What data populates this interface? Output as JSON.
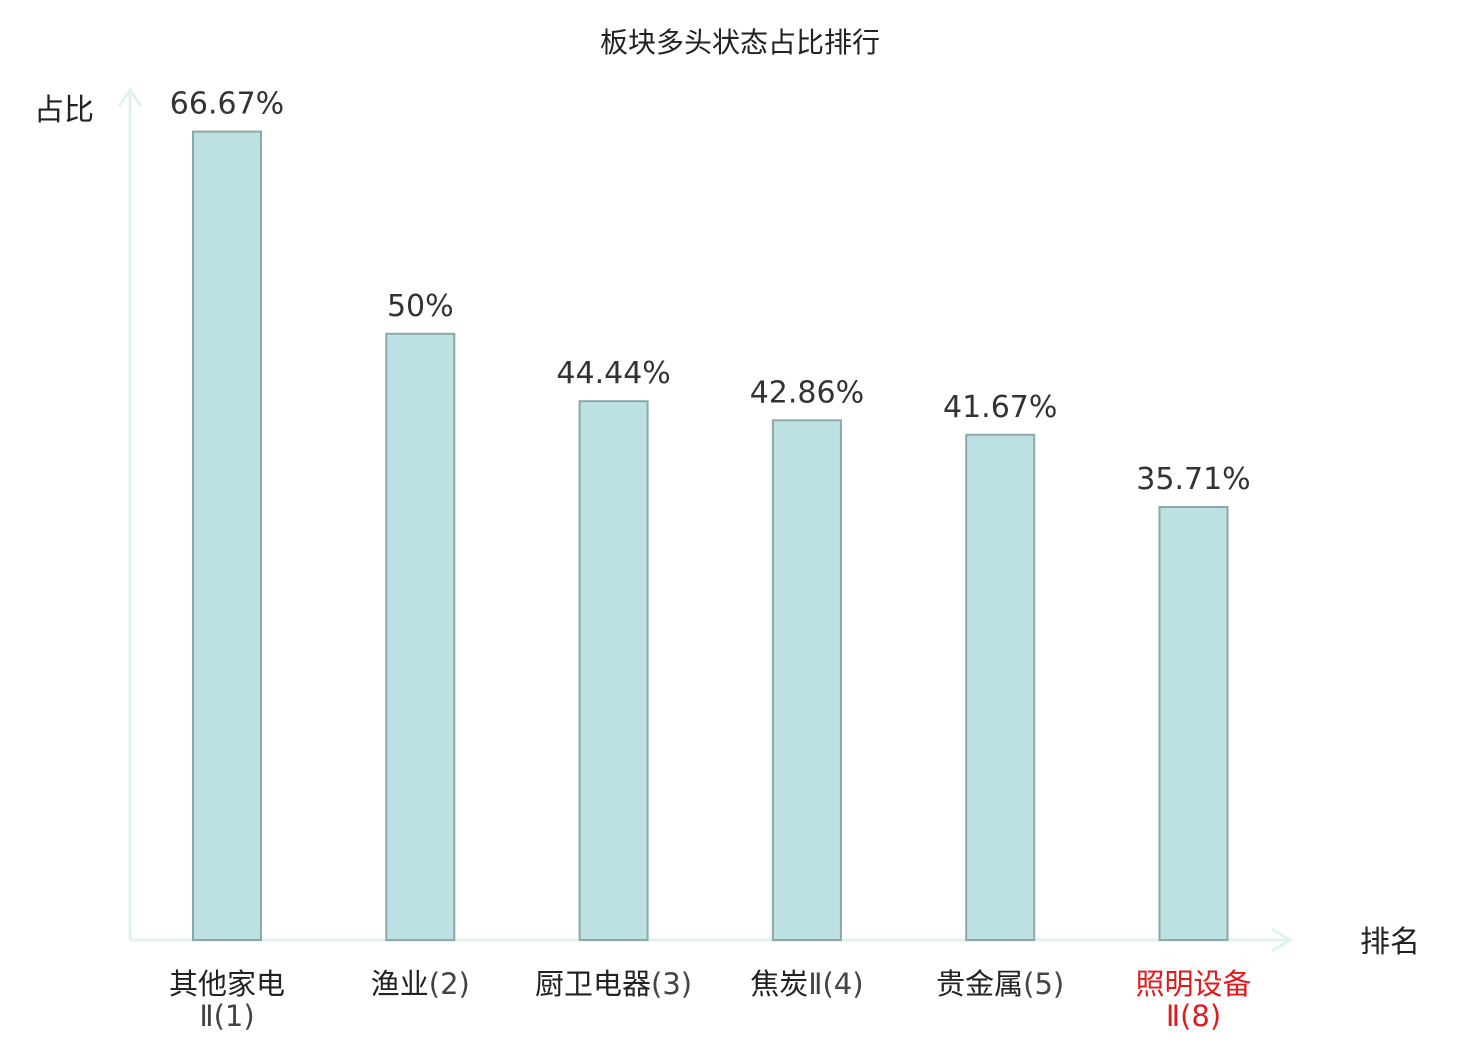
{
  "chart_data": {
    "type": "bar",
    "title": "板块多头状态占比排行",
    "ylabel": "占比",
    "xlabel": "排名",
    "ylim": [
      0,
      70
    ],
    "grid": false,
    "categories": [
      {
        "name": "其他家电",
        "suffix": "Ⅱ(1)",
        "highlight": false
      },
      {
        "name": "渔业",
        "suffix": "(2)",
        "highlight": false
      },
      {
        "name": "厨卫电器",
        "suffix": "(3)",
        "highlight": false
      },
      {
        "name": "焦炭",
        "suffix": "Ⅱ(4)",
        "highlight": false
      },
      {
        "name": "贵金属",
        "suffix": "(5)",
        "highlight": false
      },
      {
        "name": "照明设备",
        "suffix": "Ⅱ(8)",
        "highlight": true
      }
    ],
    "values": [
      66.67,
      50,
      44.44,
      42.86,
      41.67,
      35.71
    ],
    "value_labels": [
      "66.67%",
      "50%",
      "44.44%",
      "42.86%",
      "41.67%",
      "35.71%"
    ],
    "colors": {
      "bar_fill": "#bde1e3",
      "bar_stroke": "#8aa8aa",
      "axis": "#e0f2ef",
      "highlight_text": "#e31a1c",
      "normal_text": "#222222"
    }
  }
}
